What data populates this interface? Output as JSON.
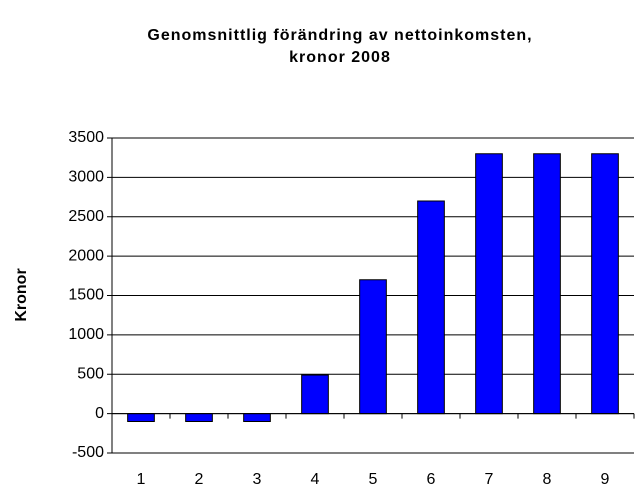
{
  "chart_data": {
    "type": "bar",
    "title_lines": [
      "Genomsnittlig förändring av nettoinkomsten,",
      "kronor 2008"
    ],
    "y_label": "Kronor",
    "categories": [
      "1",
      "2",
      "3",
      "4",
      "5",
      "6",
      "7",
      "8",
      "9"
    ],
    "values": [
      -100,
      -100,
      -100,
      490,
      1700,
      2700,
      3300,
      3300,
      3300
    ],
    "color": "#0000ff",
    "ylim": [
      -500,
      3500
    ],
    "yticks": [
      -500,
      0,
      500,
      1000,
      1500,
      2000,
      2500,
      3000,
      3500
    ],
    "grid": true
  }
}
